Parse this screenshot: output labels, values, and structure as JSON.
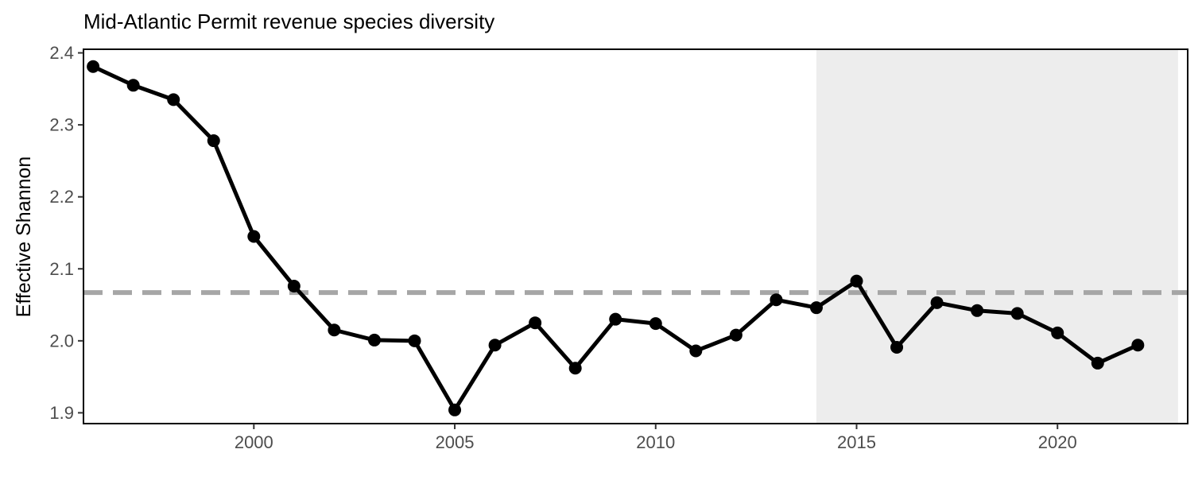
{
  "chart_data": {
    "type": "line",
    "title": "Mid-Atlantic Permit revenue species diversity",
    "xlabel": "",
    "ylabel": "Effective Shannon",
    "xlim": [
      1995.76,
      2023.24
    ],
    "ylim": [
      1.885,
      2.405
    ],
    "x_ticks": [
      "2000",
      "2005",
      "2010",
      "2015",
      "2020"
    ],
    "y_ticks": [
      "1.9",
      "2.0",
      "2.1",
      "2.2",
      "2.3",
      "2.4"
    ],
    "grid": false,
    "legend": "none",
    "reference_line": {
      "y": 2.067,
      "style": "dashed",
      "color": "#a6a6a6"
    },
    "shaded_region": {
      "x_start": 2014,
      "x_end": 2023,
      "color": "#ededed"
    },
    "series": [
      {
        "color": "#000000",
        "x": [
          1996,
          1997,
          1998,
          1999,
          2000,
          2001,
          2002,
          2003,
          2004,
          2005,
          2006,
          2007,
          2008,
          2009,
          2010,
          2011,
          2012,
          2013,
          2014,
          2015,
          2016,
          2017,
          2018,
          2019,
          2020,
          2021,
          2022
        ],
        "y": [
          2.381,
          2.355,
          2.335,
          2.278,
          2.145,
          2.076,
          2.015,
          2.001,
          2.0,
          1.904,
          1.994,
          2.025,
          1.962,
          2.03,
          2.024,
          1.986,
          2.008,
          2.057,
          2.046,
          2.083,
          1.991,
          2.053,
          2.042,
          2.038,
          2.011,
          1.969,
          1.994
        ]
      }
    ]
  }
}
